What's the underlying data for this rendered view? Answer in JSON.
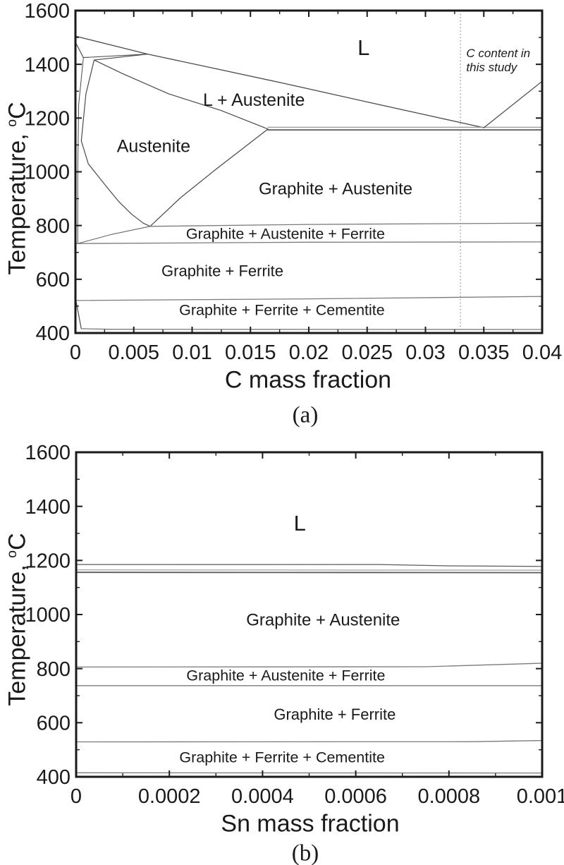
{
  "figure": {
    "background": "#ffffff",
    "ink_color": "#1a1a1a",
    "boundary_color": "#4a4a4a",
    "band_line_color": "#7a7a7a",
    "dotted_line_color": "#909090",
    "captions": [
      "(a)",
      "(b)"
    ]
  },
  "chart_data": [
    {
      "type": "line",
      "id": "a",
      "title": "",
      "xlabel": "C mass fraction",
      "ylabel": {
        "text": "Temperature, ",
        "sup": "o",
        "tail": "C"
      },
      "xlim": [
        0,
        0.04
      ],
      "ylim": [
        400,
        1600
      ],
      "grid": false,
      "legend": "none",
      "x_ticks": {
        "major": [
          {
            "v": 0,
            "label": "0"
          },
          {
            "v": 0.005,
            "label": "0.005"
          },
          {
            "v": 0.01,
            "label": "0.01"
          },
          {
            "v": 0.015,
            "label": "0.015"
          },
          {
            "v": 0.02,
            "label": "0.02"
          },
          {
            "v": 0.025,
            "label": "0.025"
          },
          {
            "v": 0.03,
            "label": "0.03"
          },
          {
            "v": 0.035,
            "label": "0.035"
          },
          {
            "v": 0.04,
            "label": "0.04"
          }
        ],
        "minor": [
          0.0025,
          0.0075,
          0.0125,
          0.0175,
          0.0225,
          0.0275,
          0.0325,
          0.0375
        ]
      },
      "y_ticks": {
        "major": [
          {
            "v": 400,
            "label": "400"
          },
          {
            "v": 600,
            "label": "600"
          },
          {
            "v": 800,
            "label": "800"
          },
          {
            "v": 1000,
            "label": "1000"
          },
          {
            "v": 1200,
            "label": "1200"
          },
          {
            "v": 1400,
            "label": "1400"
          },
          {
            "v": 1600,
            "label": "1600"
          }
        ],
        "minor": [
          500,
          700,
          900,
          1100,
          1300,
          1500
        ]
      },
      "annotation": {
        "x": 0.033,
        "lines": [
          "C content in",
          "this study"
        ],
        "text_x": 0.0335,
        "line_t": [
          1442,
          1390
        ],
        "italic": true
      },
      "region_labels": [
        {
          "text": "L",
          "x": 0.0247,
          "t": 1463,
          "fs": 31
        },
        {
          "text": "L + Austenite",
          "x": 0.0153,
          "t": 1268,
          "fs": 25
        },
        {
          "text": "Austenite",
          "x": 0.0067,
          "t": 1096,
          "fs": 25
        },
        {
          "text": "Graphite + Austenite",
          "x": 0.0223,
          "t": 938,
          "fs": 24
        },
        {
          "text": "Graphite + Austenite + Ferrite",
          "x": 0.018,
          "t": 770,
          "fs": 21.5
        },
        {
          "text": "Graphite + Ferrite",
          "x": 0.0126,
          "t": 631,
          "fs": 22
        },
        {
          "text": "Graphite + Ferrite + Cementite",
          "x": 0.0177,
          "t": 487,
          "fs": 21.5
        }
      ],
      "series": [
        {
          "name": "liquidus",
          "color": "#4a4a4a",
          "width": 1.3,
          "points": [
            [
              0,
              1505
            ],
            [
              0.0062,
              1438
            ],
            [
              0.012,
              1384
            ],
            [
              0.018,
              1328
            ],
            [
              0.025,
              1260
            ],
            [
              0.03,
              1212
            ],
            [
              0.035,
              1164
            ]
          ]
        },
        {
          "name": "delta-solidus",
          "color": "#4a4a4a",
          "width": 1.2,
          "points": [
            [
              0,
              1482
            ],
            [
              0.00068,
              1425
            ]
          ]
        },
        {
          "name": "peritectic-upper",
          "color": "#4a4a4a",
          "width": 1.1,
          "points": [
            [
              0.00068,
              1425
            ],
            [
              0.0062,
              1438
            ]
          ]
        },
        {
          "name": "peritectic-lower",
          "color": "#4a4a4a",
          "width": 1.1,
          "points": [
            [
              0.0016,
              1416
            ],
            [
              0.0062,
              1438
            ]
          ]
        },
        {
          "name": "gamma-loop-left",
          "color": "#4a4a4a",
          "width": 1.2,
          "points": [
            [
              0.0016,
              1416
            ],
            [
              0.0009,
              1290
            ],
            [
              0.0005,
              1115
            ],
            [
              0.0011,
              1030
            ],
            [
              0.0026,
              948
            ],
            [
              0.0037,
              890
            ],
            [
              0.0048,
              843
            ],
            [
              0.0058,
              809
            ],
            [
              0.0064,
              797
            ]
          ]
        },
        {
          "name": "ferrite-left-boundary",
          "color": "#4a4a4a",
          "width": 1,
          "points": [
            [
              0.00068,
              1425
            ],
            [
              0.00028,
              1250
            ],
            [
              0.0002,
              1000
            ],
            [
              0.0002,
              800
            ],
            [
              0.0002,
              733
            ]
          ]
        },
        {
          "name": "ferrite-wedge-top",
          "color": "#6a6a6a",
          "width": 1.1,
          "points": [
            [
              0.0002,
              733
            ],
            [
              0.003,
              766
            ],
            [
              0.0064,
              797
            ]
          ]
        },
        {
          "name": "acm-boundary",
          "color": "#4a4a4a",
          "width": 1.2,
          "points": [
            [
              0.0064,
              797
            ],
            [
              0.009,
              903
            ],
            [
              0.012,
              1008
            ],
            [
              0.0165,
              1159
            ]
          ]
        },
        {
          "name": "austenite-solidus",
          "color": "#4a4a4a",
          "width": 1.2,
          "points": [
            [
              0.0016,
              1416
            ],
            [
              0.004,
              1366
            ],
            [
              0.008,
              1290
            ],
            [
              0.0125,
              1228
            ],
            [
              0.0165,
              1159
            ]
          ]
        },
        {
          "name": "eutectic-upper",
          "color": "#8a8a8a",
          "width": 1.1,
          "points": [
            [
              0.0165,
              1166
            ],
            [
              0.04,
              1166
            ]
          ]
        },
        {
          "name": "eutectic-lower",
          "color": "#5a5a5a",
          "width": 1.8,
          "points": [
            [
              0.0165,
              1156
            ],
            [
              0.04,
              1156
            ]
          ]
        },
        {
          "name": "graphite-liquidus",
          "color": "#4a4a4a",
          "width": 1.2,
          "points": [
            [
              0.035,
              1164
            ],
            [
              0.04,
              1337
            ]
          ]
        },
        {
          "name": "a3-805-line",
          "color": "#7a7a7a",
          "width": 1.3,
          "points": [
            [
              0.0064,
              797
            ],
            [
              0.02,
              804
            ],
            [
              0.04,
              809
            ]
          ]
        },
        {
          "name": "a1-738-line",
          "color": "#7a7a7a",
          "width": 1.3,
          "points": [
            [
              0,
              733
            ],
            [
              0.02,
              738
            ],
            [
              0.04,
              739
            ]
          ]
        },
        {
          "name": "line-528",
          "color": "#7a7a7a",
          "width": 1.3,
          "points": [
            [
              0,
              521
            ],
            [
              0.02,
              527
            ],
            [
              0.04,
              536
            ]
          ]
        },
        {
          "name": "ferrite-cementite-left",
          "color": "#4a4a4a",
          "width": 1.2,
          "points": [
            [
              5e-05,
              520
            ],
            [
              0.0005,
              416
            ]
          ]
        },
        {
          "name": "line-413",
          "color": "#7a7a7a",
          "width": 1.3,
          "points": [
            [
              0.0005,
              416
            ],
            [
              0.003,
              414
            ],
            [
              0.04,
              413
            ]
          ]
        }
      ]
    },
    {
      "type": "line",
      "id": "b",
      "title": "",
      "xlabel": "Sn mass fraction",
      "ylabel": {
        "text": "Temperature, ",
        "sup": "o",
        "tail": "C"
      },
      "xlim": [
        0,
        0.001
      ],
      "ylim": [
        400,
        1600
      ],
      "grid": false,
      "legend": "none",
      "x_ticks": {
        "major": [
          {
            "v": 0,
            "label": "0"
          },
          {
            "v": 0.0002,
            "label": "0.0002"
          },
          {
            "v": 0.0004,
            "label": "0.0004"
          },
          {
            "v": 0.0006,
            "label": "0.0006"
          },
          {
            "v": 0.0008,
            "label": "0.0008"
          },
          {
            "v": 0.001,
            "label": "0.001"
          }
        ],
        "minor": [
          0.0001,
          0.0003,
          0.0005,
          0.0007,
          0.0009
        ]
      },
      "y_ticks": {
        "major": [
          {
            "v": 400,
            "label": "400"
          },
          {
            "v": 600,
            "label": "600"
          },
          {
            "v": 800,
            "label": "800"
          },
          {
            "v": 1000,
            "label": "1000"
          },
          {
            "v": 1200,
            "label": "1200"
          },
          {
            "v": 1400,
            "label": "1400"
          },
          {
            "v": 1600,
            "label": "1600"
          }
        ],
        "minor": [
          500,
          700,
          900,
          1100,
          1300,
          1500
        ]
      },
      "annotation": null,
      "region_labels": [
        {
          "text": "L",
          "x": 0.00048,
          "t": 1339,
          "fs": 31
        },
        {
          "text": "Graphite + Austenite",
          "x": 0.00053,
          "t": 982,
          "fs": 24
        },
        {
          "text": "Graphite + Austenite + Ferrite",
          "x": 0.00045,
          "t": 776,
          "fs": 21.5
        },
        {
          "text": "Graphite + Ferrite",
          "x": 0.000555,
          "t": 632,
          "fs": 22
        },
        {
          "text": "Graphite + Ferrite + Cementite",
          "x": 0.000442,
          "t": 473,
          "fs": 21.5
        }
      ],
      "series": [
        {
          "name": "liquidus-line",
          "color": "#5a5a5a",
          "width": 1.2,
          "points": [
            [
              0,
              1185
            ],
            [
              0.00065,
              1185
            ],
            [
              0.0008,
              1180
            ],
            [
              0.001,
              1178
            ]
          ]
        },
        {
          "name": "eutectic-band-upper",
          "color": "#8a8a8a",
          "width": 1,
          "points": [
            [
              0,
              1165
            ],
            [
              0.001,
              1164
            ]
          ]
        },
        {
          "name": "eutectic-band-lower",
          "color": "#5a5a5a",
          "width": 1.8,
          "points": [
            [
              0,
              1156
            ],
            [
              0.001,
              1155
            ]
          ]
        },
        {
          "name": "a3-805-line",
          "color": "#7a7a7a",
          "width": 1.3,
          "points": [
            [
              0,
              806
            ],
            [
              0.00075,
              807
            ],
            [
              0.001,
              820
            ]
          ]
        },
        {
          "name": "a1-738-line",
          "color": "#7a7a7a",
          "width": 1.3,
          "points": [
            [
              0,
              737
            ],
            [
              0.001,
              737
            ]
          ]
        },
        {
          "name": "line-528",
          "color": "#7a7a7a",
          "width": 1.3,
          "points": [
            [
              0,
              529
            ],
            [
              0.00085,
              530
            ],
            [
              0.001,
              534
            ]
          ]
        },
        {
          "name": "line-413",
          "color": "#7a7a7a",
          "width": 1.3,
          "points": [
            [
              0,
              415
            ],
            [
              0.001,
              414
            ]
          ]
        }
      ]
    }
  ]
}
